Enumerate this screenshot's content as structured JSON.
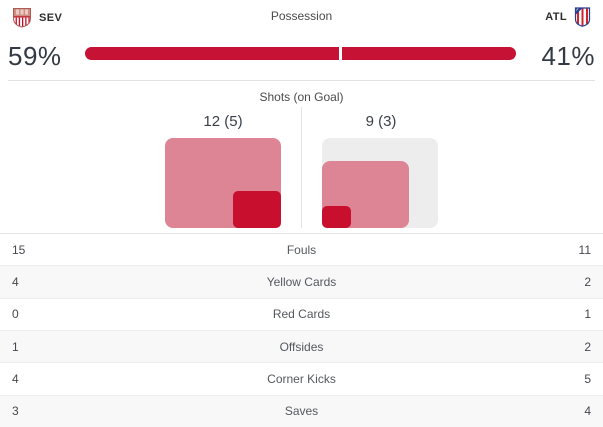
{
  "header": {
    "home_abbr": "SEV",
    "away_abbr": "ATL",
    "possession_label": "Possession"
  },
  "possession": {
    "home_pct": "59%",
    "away_pct": "41%",
    "home_value": 59,
    "away_value": 41,
    "bar_color": "#c61235"
  },
  "shots": {
    "title": "Shots (on Goal)",
    "home": {
      "label": "12 (5)",
      "shots": 12,
      "on_goal": 5
    },
    "away": {
      "label": "9 (3)",
      "shots": 9,
      "on_goal": 3
    },
    "max": 12,
    "colors": {
      "shots": "#dd8495",
      "on_goal": "#c8102e",
      "background": "#ededee"
    }
  },
  "stats_rows": [
    {
      "home": "15",
      "label": "Fouls",
      "away": "11"
    },
    {
      "home": "4",
      "label": "Yellow Cards",
      "away": "2"
    },
    {
      "home": "0",
      "label": "Red Cards",
      "away": "1"
    },
    {
      "home": "1",
      "label": "Offsides",
      "away": "2"
    },
    {
      "home": "4",
      "label": "Corner Kicks",
      "away": "5"
    },
    {
      "home": "3",
      "label": "Saves",
      "away": "4"
    }
  ],
  "icons": {
    "home_crest": "sevilla-crest",
    "away_crest": "atletico-crest"
  },
  "chart_data": [
    {
      "type": "bar",
      "title": "Possession",
      "categories": [
        "SEV",
        "ATL"
      ],
      "values": [
        59,
        41
      ],
      "unit": "%"
    },
    {
      "type": "bar",
      "title": "Shots (on Goal)",
      "categories": [
        "SEV",
        "ATL"
      ],
      "series": [
        {
          "name": "Shots",
          "values": [
            12,
            9
          ]
        },
        {
          "name": "On Goal",
          "values": [
            5,
            3
          ]
        }
      ],
      "max": 12
    }
  ]
}
